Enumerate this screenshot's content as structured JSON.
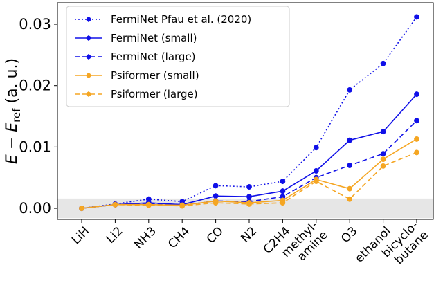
{
  "chart_data": {
    "type": "line",
    "title": "",
    "xlabel": "",
    "ylabel": {
      "main": "E − E",
      "subscript": "ref",
      "unit": " (a. u.)"
    },
    "categories": [
      "LiH",
      "Li2",
      "NH3",
      "CH4",
      "CO",
      "N2",
      "C2H4",
      "methyl-\namine",
      "O3",
      "ethanol",
      "bicyclo-\nbutane"
    ],
    "ylim": [
      -0.0018,
      0.0335
    ],
    "yticks": [
      0.0,
      0.01,
      0.02,
      0.03
    ],
    "ytick_labels": [
      "0.00",
      "0.01",
      "0.02",
      "0.03"
    ],
    "shaded_band": [
      -0.0016,
      0.0016
    ],
    "legend_position": "upper-left",
    "series": [
      {
        "name": "FermiNet Pfau et al. (2020)",
        "color": "#1010e8",
        "linestyle": "dotted",
        "values": [
          0.0,
          0.0007,
          0.0015,
          0.0011,
          0.0037,
          0.0035,
          0.0044,
          0.0099,
          0.0193,
          0.0236,
          0.0312
        ]
      },
      {
        "name": "FermiNet (small)",
        "color": "#1010e8",
        "linestyle": "solid",
        "values": [
          0.0,
          0.0006,
          0.0009,
          0.0006,
          0.002,
          0.0019,
          0.0028,
          0.0061,
          0.0111,
          0.0125,
          0.0186
        ]
      },
      {
        "name": "FermiNet (large)",
        "color": "#1010e8",
        "linestyle": "dashed",
        "values": [
          0.0,
          0.0006,
          0.0008,
          0.0005,
          0.0012,
          0.0011,
          0.0019,
          0.005,
          0.007,
          0.0089,
          0.0143
        ]
      },
      {
        "name": "Psiformer (small)",
        "color": "#f5a623",
        "linestyle": "solid",
        "values": [
          0.0,
          0.0006,
          0.0006,
          0.0005,
          0.0012,
          0.0009,
          0.0013,
          0.0047,
          0.0032,
          0.008,
          0.0113
        ]
      },
      {
        "name": "Psiformer (large)",
        "color": "#f5a623",
        "linestyle": "dashed",
        "values": [
          0.0,
          0.0006,
          0.0005,
          0.0004,
          0.0009,
          0.0007,
          0.0009,
          0.0044,
          0.0015,
          0.0069,
          0.0091
        ]
      }
    ]
  }
}
